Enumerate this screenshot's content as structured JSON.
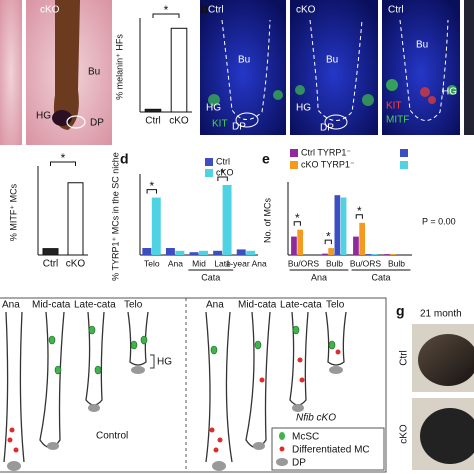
{
  "panel_labels": [
    "b",
    "d",
    "e",
    "g"
  ],
  "panel_a": {
    "labels": [
      "cKO",
      "Bu",
      "HG",
      "DP"
    ]
  },
  "panel_b": {
    "images": [
      {
        "labels": [
          "Ctrl",
          "Bu",
          "HG",
          "DP",
          "KIT"
        ]
      },
      {
        "labels": [
          "cKO",
          "Bu",
          "HG",
          "DP"
        ]
      },
      {
        "labels": [
          "Ctrl",
          "Bu",
          "HG",
          "KIT",
          "MITF"
        ]
      }
    ]
  },
  "diagram": {
    "control_stages": [
      "Ana",
      "Mid-cata",
      "Late-cata",
      "Telo"
    ],
    "hg_label": "HG",
    "control_label": "Control",
    "cko_stages": [
      "Ana",
      "Mid-cata",
      "Late-cata",
      "Telo"
    ],
    "cko_label": "Nfib cKO",
    "legend": [
      "McSC",
      "Differentiated MC",
      "DP"
    ]
  },
  "panel_g": {
    "title": "21 month",
    "rows": [
      "Ctrl",
      "cKO"
    ]
  },
  "chart_data": [
    {
      "type": "bar",
      "y_label": "% melanin⁺ HFs",
      "categories": [
        "Ctrl",
        "cKO"
      ],
      "values": [
        3,
        93
      ],
      "colors": [
        "#222222",
        "#ffffff"
      ],
      "ylim": [
        0,
        100
      ],
      "annotations": [
        "*"
      ]
    },
    {
      "type": "bar",
      "y_label": "% MITF⁺ MCs",
      "categories": [
        "Ctrl",
        "cKO"
      ],
      "values": [
        3,
        34
      ],
      "colors": [
        "#222222",
        "#ffffff"
      ],
      "ylim": [
        0,
        40
      ],
      "annotations": [
        "*"
      ]
    },
    {
      "type": "grouped_bar",
      "y_label": "% TYRP1⁺ MCs in the SC niche",
      "categories": [
        "Telo",
        "Ana",
        "Mid",
        "Late",
        "1-year Ana"
      ],
      "groups": [
        "Cata"
      ],
      "series": [
        {
          "name": "Ctrl",
          "color": "#3b4fc2",
          "values": [
            5,
            5,
            2,
            3,
            4
          ]
        },
        {
          "name": "cKO",
          "color": "#4fd2e2",
          "values": [
            41,
            3,
            3,
            50,
            3
          ]
        }
      ],
      "ylim": [
        0,
        55
      ],
      "annotations": [
        "*",
        "*"
      ]
    },
    {
      "type": "grouped_bar",
      "y_label": "No. of MCs",
      "categories": [
        "Bu/ORS",
        "Bulb",
        "Bu/ORS",
        "Bulb"
      ],
      "groups": [
        "Ana",
        "Cata"
      ],
      "series": [
        {
          "name": "Ctrl TYRP1⁻",
          "color": "#8e2a9c",
          "values": [
            4,
            0.3,
            4,
            0.2
          ]
        },
        {
          "name": "cKO TYRP1⁻",
          "color": "#f39a1f",
          "values": [
            5.5,
            1.5,
            7,
            0.2
          ]
        },
        {
          "name": null,
          "color": "#3b4fc2",
          "values": [
            0,
            13,
            0.2,
            0
          ]
        },
        {
          "name": null,
          "color": "#4fd2e2",
          "values": [
            0,
            12.5,
            0.2,
            0
          ]
        }
      ],
      "ylim": [
        0,
        15
      ],
      "annotations": [
        "*",
        "*",
        "*",
        "P = 0.00"
      ]
    }
  ]
}
